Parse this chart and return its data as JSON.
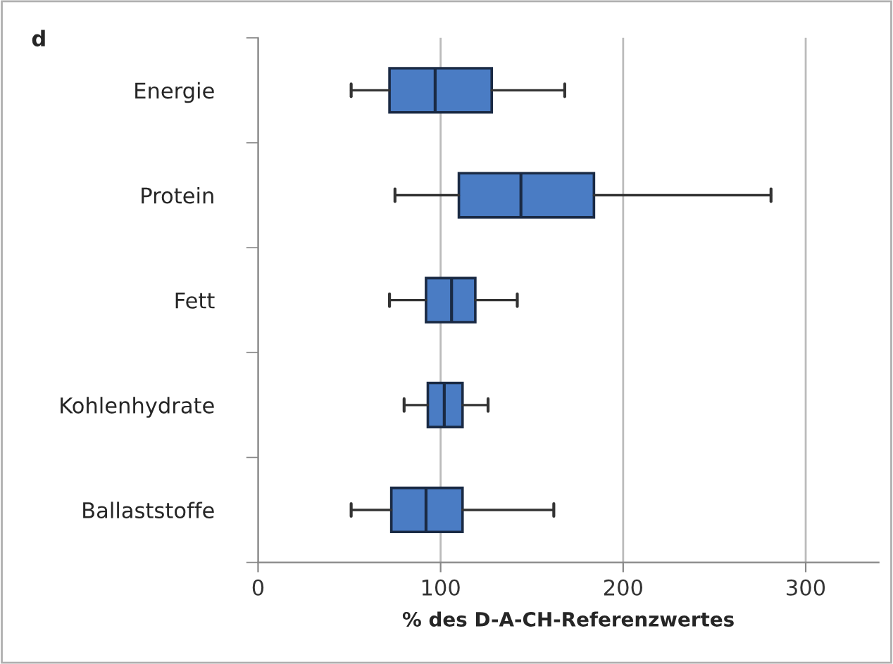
{
  "chart_data": {
    "type": "box",
    "orientation": "horizontal",
    "xlabel": "% des D-A-CH-Referenzwertes",
    "annotations": [
      "d"
    ],
    "categories": [
      "Energie",
      "Protein",
      "Fett",
      "Kohlenhydrate",
      "Ballaststoffe"
    ],
    "boxes": [
      {
        "low": 51,
        "q1": 72,
        "median": 97,
        "q3": 128,
        "high": 168
      },
      {
        "low": 75,
        "q1": 110,
        "median": 144,
        "q3": 184,
        "high": 281
      },
      {
        "low": 72,
        "q1": 92,
        "median": 106,
        "q3": 119,
        "high": 142
      },
      {
        "low": 80,
        "q1": 93,
        "median": 102,
        "q3": 112,
        "high": 126
      },
      {
        "low": 51,
        "q1": 73,
        "median": 92,
        "q3": 112,
        "high": 162
      }
    ],
    "color": "#4a7cc4",
    "xlim": [
      0,
      340
    ],
    "xticks": [
      0,
      100,
      200,
      300
    ],
    "grid": "x"
  }
}
